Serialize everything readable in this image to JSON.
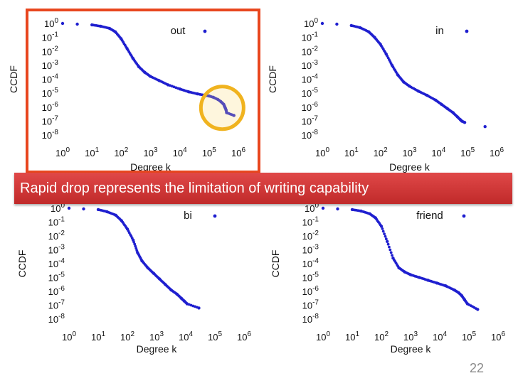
{
  "banner_text": "Rapid drop represents the limitation of writing capability",
  "page_number": "22",
  "colors": {
    "series": "#1f1fcf",
    "highlight_border": "#e8461e",
    "banner": "#cc3333",
    "circle": "#f0b31f"
  },
  "chart_data": [
    {
      "type": "scatter",
      "legend": "out",
      "xlabel": "Degree k",
      "ylabel": "CCDF",
      "xscale": "log",
      "yscale": "log",
      "xticks": [
        "10^0",
        "10^1",
        "10^2",
        "10^3",
        "10^4",
        "10^5",
        "10^6"
      ],
      "yticks": [
        "10^0",
        "10^-1",
        "10^-2",
        "10^-3",
        "10^-4",
        "10^-5",
        "10^-6",
        "10^-7",
        "10^-8"
      ],
      "xlim_exp": [
        0,
        6
      ],
      "ylim_exp": [
        -8,
        0
      ],
      "legend_position": "top-right",
      "highlighted": true,
      "x_log10": [
        0,
        0.5,
        1,
        1.3,
        1.6,
        1.8,
        2.0,
        2.2,
        2.4,
        2.6,
        2.8,
        3.0,
        3.3,
        3.6,
        4.0,
        4.3,
        4.6,
        4.85,
        5.0,
        5.15,
        5.3,
        5.4,
        5.45,
        5.5,
        5.52,
        5.54,
        5.56,
        5.58,
        5.6,
        5.85
      ],
      "y_log10": [
        0,
        -0.05,
        -0.1,
        -0.2,
        -0.35,
        -0.6,
        -1.1,
        -1.8,
        -2.5,
        -3.1,
        -3.5,
        -3.8,
        -4.1,
        -4.4,
        -4.7,
        -4.9,
        -5.05,
        -5.15,
        -5.2,
        -5.3,
        -5.45,
        -5.6,
        -5.7,
        -5.8,
        -5.9,
        -6.0,
        -6.1,
        -6.2,
        -6.4,
        -6.6
      ]
    },
    {
      "type": "scatter",
      "legend": "in",
      "xlabel": "Degree k",
      "ylabel": "CCDF",
      "xscale": "log",
      "yscale": "log",
      "xticks": [
        "10^0",
        "10^1",
        "10^2",
        "10^3",
        "10^4",
        "10^5",
        "10^6"
      ],
      "yticks": [
        "10^0",
        "10^-1",
        "10^-2",
        "10^-3",
        "10^-4",
        "10^-5",
        "10^-6",
        "10^-7",
        "10^-8"
      ],
      "xlim_exp": [
        0,
        6
      ],
      "ylim_exp": [
        -8,
        0
      ],
      "legend_position": "top-right",
      "highlighted": false,
      "x_log10": [
        0,
        0.5,
        1,
        1.3,
        1.6,
        1.8,
        2.0,
        2.2,
        2.4,
        2.6,
        2.8,
        3.0,
        3.3,
        3.6,
        3.9,
        4.1,
        4.3,
        4.5,
        4.65,
        4.75,
        4.8,
        4.9,
        5.6
      ],
      "y_log10": [
        0,
        -0.05,
        -0.15,
        -0.3,
        -0.6,
        -1.0,
        -1.5,
        -2.2,
        -3.0,
        -3.7,
        -4.2,
        -4.5,
        -4.85,
        -5.15,
        -5.5,
        -5.8,
        -6.1,
        -6.4,
        -6.7,
        -6.9,
        -7.0,
        -7.1,
        -7.4
      ]
    },
    {
      "type": "scatter",
      "legend": "bi",
      "xlabel": "Degree k",
      "ylabel": "CCDF",
      "xscale": "log",
      "yscale": "log",
      "xticks": [
        "10^0",
        "10^1",
        "10^2",
        "10^3",
        "10^4",
        "10^5",
        "10^6"
      ],
      "yticks": [
        "10^0",
        "10^-1",
        "10^-2",
        "10^-3",
        "10^-4",
        "10^-5",
        "10^-6",
        "10^-7",
        "10^-8"
      ],
      "xlim_exp": [
        0,
        6
      ],
      "ylim_exp": [
        -8,
        0
      ],
      "legend_position": "top-right",
      "highlighted": false,
      "x_log10": [
        0,
        0.5,
        1,
        1.3,
        1.6,
        1.8,
        2.0,
        2.2,
        2.35,
        2.5,
        2.7,
        2.9,
        3.1,
        3.3,
        3.5,
        3.7,
        3.85,
        3.95,
        4.05,
        4.45
      ],
      "y_log10": [
        0,
        -0.05,
        -0.1,
        -0.25,
        -0.5,
        -0.9,
        -1.5,
        -2.3,
        -3.2,
        -3.8,
        -4.3,
        -4.7,
        -5.1,
        -5.5,
        -5.9,
        -6.2,
        -6.5,
        -6.7,
        -6.9,
        -7.2
      ]
    },
    {
      "type": "scatter",
      "legend": "friend",
      "xlabel": "Degree k",
      "ylabel": "CCDF",
      "xscale": "log",
      "yscale": "log",
      "xticks": [
        "10^0",
        "10^1",
        "10^2",
        "10^3",
        "10^4",
        "10^5",
        "10^6"
      ],
      "yticks": [
        "10^0",
        "10^-1",
        "10^-2",
        "10^-3",
        "10^-4",
        "10^-5",
        "10^-6",
        "10^-7",
        "10^-8"
      ],
      "xlim_exp": [
        0,
        6
      ],
      "ylim_exp": [
        -8,
        0
      ],
      "legend_position": "top-right",
      "highlighted": false,
      "x_log10": [
        0,
        0.5,
        1,
        1.3,
        1.6,
        1.8,
        2.0,
        2.2,
        2.4,
        2.6,
        2.8,
        3.0,
        3.3,
        3.6,
        3.9,
        4.2,
        4.5,
        4.65,
        4.75,
        4.85,
        4.95,
        5.3
      ],
      "y_log10": [
        0,
        -0.05,
        -0.1,
        -0.2,
        -0.4,
        -0.7,
        -1.3,
        -2.4,
        -3.6,
        -4.3,
        -4.6,
        -4.8,
        -5.0,
        -5.2,
        -5.4,
        -5.6,
        -5.9,
        -6.1,
        -6.3,
        -6.6,
        -6.9,
        -7.3
      ]
    }
  ]
}
